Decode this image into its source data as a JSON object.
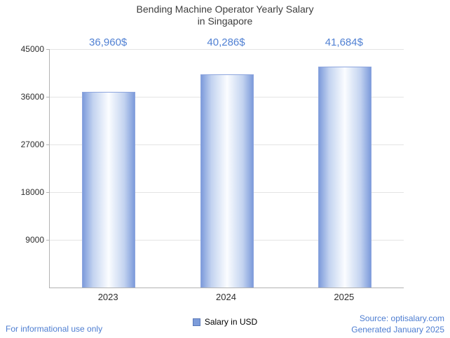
{
  "chart_data": {
    "type": "bar",
    "title": "Bending Machine Operator Yearly Salary in Singapore",
    "title_lines": [
      "Bending Machine Operator Yearly Salary",
      "in Singapore"
    ],
    "categories": [
      "2023",
      "2024",
      "2025"
    ],
    "values": [
      36960,
      40286,
      41684
    ],
    "value_labels": [
      "36,960$",
      "40,286$",
      "41,684$"
    ],
    "ylim": [
      0,
      45000
    ],
    "yticks": [
      9000,
      18000,
      27000,
      36000,
      45000
    ],
    "legend": "Salary in USD",
    "grid": true,
    "legend_position": "bottom-center",
    "xlabel": "",
    "ylabel": ""
  },
  "footer": {
    "disclaimer": "For informational use only",
    "source": "Source: optisalary.com",
    "generated": "Generated January 2025"
  },
  "colors": {
    "accent_text": "#5181d3",
    "bar_edge": "#7d9bdb",
    "bar_center": "#fbfdff",
    "bar_border": "#8ea6de",
    "legend_square": "#7d9cda",
    "title_text": "#3d3d3d",
    "axis_line": "#b3b3b3",
    "gridline": "#e4e4e4"
  }
}
